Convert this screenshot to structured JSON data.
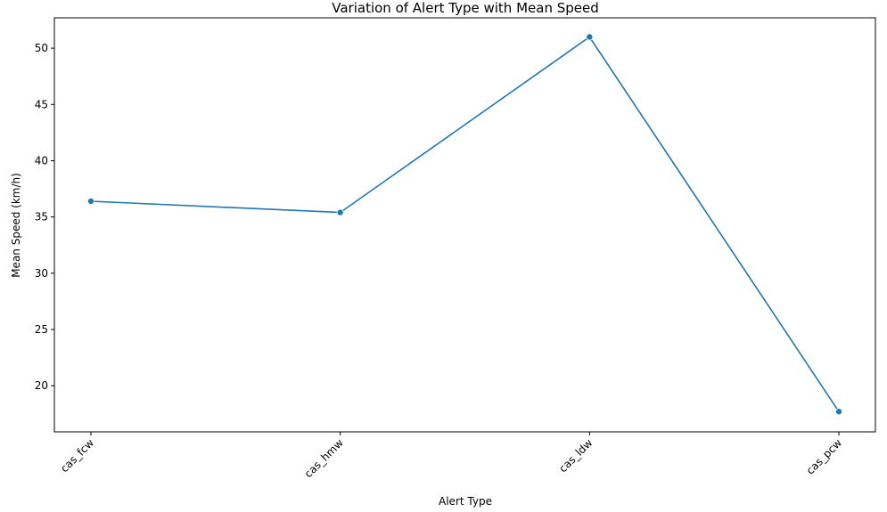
{
  "chart_data": {
    "type": "line",
    "title": "Variation of Alert Type with Mean Speed",
    "xlabel": "Alert Type",
    "ylabel": "Mean Speed (km/h)",
    "categories": [
      "cas_fcw",
      "cas_hmw",
      "cas_ldw",
      "cas_pcw"
    ],
    "series": [
      {
        "values": [
          36.4,
          35.4,
          51.0,
          17.7
        ],
        "color": "#1f77b4",
        "marker": "circle"
      }
    ],
    "ylim": [
      15.9,
      52.7
    ],
    "yticks": [
      20,
      25,
      30,
      35,
      40,
      45,
      50
    ],
    "x_tick_rotation": 45,
    "grid": false,
    "legend": "none"
  }
}
